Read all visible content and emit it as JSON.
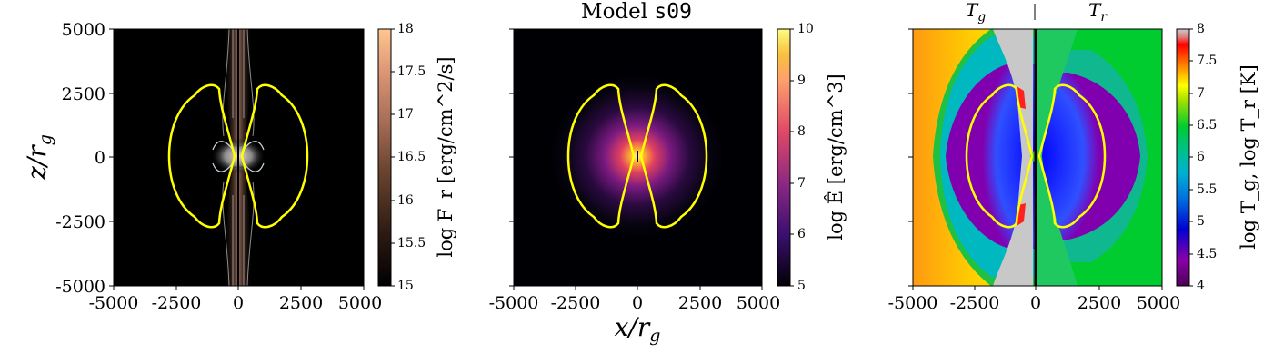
{
  "figure": {
    "title_prefix": "Model",
    "title_model": "s09",
    "xlabel": "x/r",
    "xlabel_sub": "g",
    "ylabel": "z/r",
    "ylabel_sub": "g"
  },
  "chart_data": [
    {
      "type": "heatmap",
      "panel": "left",
      "quantity": "radiative flux",
      "xlim": [
        -5000,
        5000
      ],
      "ylim": [
        -5000,
        5000
      ],
      "xticks": [
        "-5000",
        "-2500",
        "0",
        "2500",
        "5000"
      ],
      "yticks": [
        "5000",
        "2500",
        "0",
        "-2500",
        "-5000"
      ],
      "colorbar": {
        "label": "log F_r [erg/cm^2/s]",
        "range": [
          15,
          18
        ],
        "ticks": [
          "15",
          "15.5",
          "16",
          "16.5",
          "17",
          "17.5",
          "18"
        ],
        "colormap": [
          "#000000",
          "#2b1a12",
          "#6b4430",
          "#a87058",
          "#e09a78",
          "#ffc790"
        ]
      },
      "overlay": {
        "contour_color": "#ffff00",
        "shape": "photosphere lobes",
        "radius": 2800,
        "pinch_height": 2750,
        "pinch_x": 720
      }
    },
    {
      "type": "heatmap",
      "panel": "middle",
      "quantity": "radiation energy density",
      "xlim": [
        -5000,
        5000
      ],
      "ylim": [
        -5000,
        5000
      ],
      "xticks": [
        "-5000",
        "-2500",
        "0",
        "2500",
        "5000"
      ],
      "colorbar": {
        "label": "log Ê [erg/cm^3]",
        "range": [
          5,
          10
        ],
        "ticks": [
          "5",
          "6",
          "7",
          "8",
          "9",
          "10"
        ],
        "colormap": [
          "#000004",
          "#3b0f70",
          "#8c2981",
          "#de4968",
          "#fe9f6d",
          "#fcfdbf"
        ]
      },
      "overlay": {
        "contour_color": "#ffff00",
        "shape": "photosphere lobes",
        "radius": 2800,
        "pinch_height": 2750,
        "pinch_x": 720
      }
    },
    {
      "type": "heatmap",
      "panel": "right",
      "quantity": "gas temperature (left half) / radiation temperature (right half)",
      "left_half_label": "T",
      "left_half_sub": "g",
      "right_half_label": "T",
      "right_half_sub": "r",
      "xlim": [
        -5000,
        5000
      ],
      "ylim": [
        -5000,
        5000
      ],
      "xticks": [
        "-5000",
        "-2500",
        "0",
        "2500",
        "5000"
      ],
      "colorbar": {
        "label": "log T_g, log T_r [K]",
        "range": [
          4,
          8
        ],
        "ticks": [
          "4",
          "4.5",
          "5",
          "5.5",
          "6",
          "6.5",
          "7",
          "7.5",
          "8"
        ],
        "colormap": [
          "#4b0055",
          "#8a00a8",
          "#0000d0",
          "#0098e0",
          "#00c0a0",
          "#00cc30",
          "#60e000",
          "#ffff00",
          "#ff8000",
          "#ff0000",
          "#cccccc"
        ]
      },
      "overlay": {
        "contour_color": "#ffff00",
        "shape": "photosphere lobes",
        "radius": 2800,
        "pinch_height": 2750,
        "pinch_x": 720
      }
    }
  ]
}
